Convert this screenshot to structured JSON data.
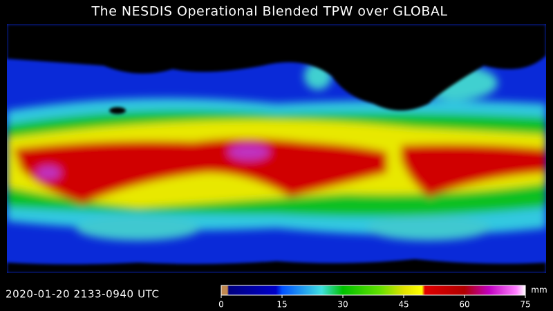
{
  "title": "The NESDIS Operational Blended TPW over GLOBAL",
  "timestamp": "2020-01-20  2133-0940  UTC",
  "colorbar": {
    "ticks": [
      0,
      15,
      30,
      45,
      60,
      75
    ],
    "unit": "mm"
  }
}
